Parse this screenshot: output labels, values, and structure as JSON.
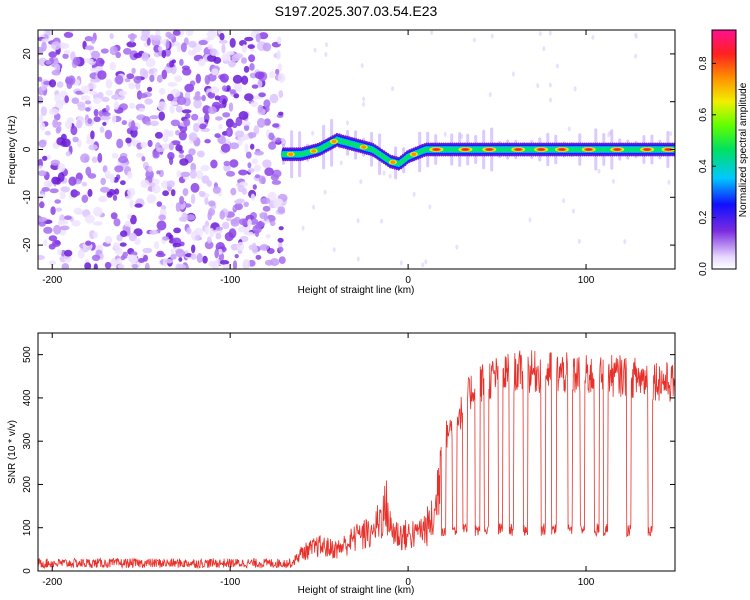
{
  "title": "S197.2025.307.03.54.E23",
  "chart_data": [
    {
      "type": "heatmap",
      "xlabel": "Height of straight line (km)",
      "ylabel": "Frequency (Hz)",
      "xlim": [
        -208,
        150
      ],
      "ylim": [
        -25,
        25
      ],
      "xticks": [
        -200,
        -100,
        0,
        100
      ],
      "yticks": [
        -20,
        -10,
        0,
        10,
        20
      ],
      "noise_region_x": [
        -208,
        -70
      ],
      "signal_track": {
        "x": [
          -70,
          -60,
          -50,
          -40,
          -30,
          -20,
          -10,
          -5,
          0,
          10,
          20,
          40,
          60,
          80,
          100,
          120,
          140,
          150
        ],
        "frequency": [
          -1,
          -1,
          0,
          2,
          1,
          0,
          -2.5,
          -3,
          -1.5,
          0,
          0,
          0,
          0,
          0,
          0,
          0,
          0,
          0
        ]
      },
      "colorbar": {
        "label": "Normalized spectral amplitude",
        "range": [
          0.0,
          0.93
        ],
        "ticks": [
          0.0,
          0.2,
          0.4,
          0.6,
          0.8
        ],
        "tick_labels": [
          "0.0",
          "0.2",
          "0.4",
          "0.6",
          "0.8"
        ]
      }
    },
    {
      "type": "line",
      "xlabel": "Height of straight line (km)",
      "ylabel": "SNR (10 * v/v)",
      "xlim": [
        -208,
        150
      ],
      "ylim": [
        0,
        550
      ],
      "xticks": [
        -200,
        -100,
        0,
        100
      ],
      "yticks": [
        0,
        100,
        200,
        300,
        400,
        500
      ],
      "series": [
        {
          "name": "SNR",
          "color": "#e8302a",
          "envelope_x": [
            -208,
            -150,
            -100,
            -66,
            -60,
            -50,
            -40,
            -30,
            -20,
            -12,
            -10,
            -5,
            0,
            10,
            15,
            18,
            20,
            25,
            30,
            35,
            40,
            50,
            60,
            80,
            100,
            120,
            140,
            150
          ],
          "envelope_y": [
            18,
            18,
            18,
            18,
            50,
            70,
            60,
            90,
            110,
            180,
            120,
            100,
            100,
            120,
            150,
            300,
            330,
            370,
            400,
            450,
            470,
            490,
            500,
            500,
            490,
            490,
            480,
            470
          ],
          "dropouts_x": [
            -28,
            -20,
            5,
            20,
            26,
            32,
            39,
            44,
            52,
            58,
            66,
            76,
            82,
            91,
            98,
            106,
            111,
            124,
            136
          ],
          "dropout_level": 95
        }
      ]
    }
  ]
}
